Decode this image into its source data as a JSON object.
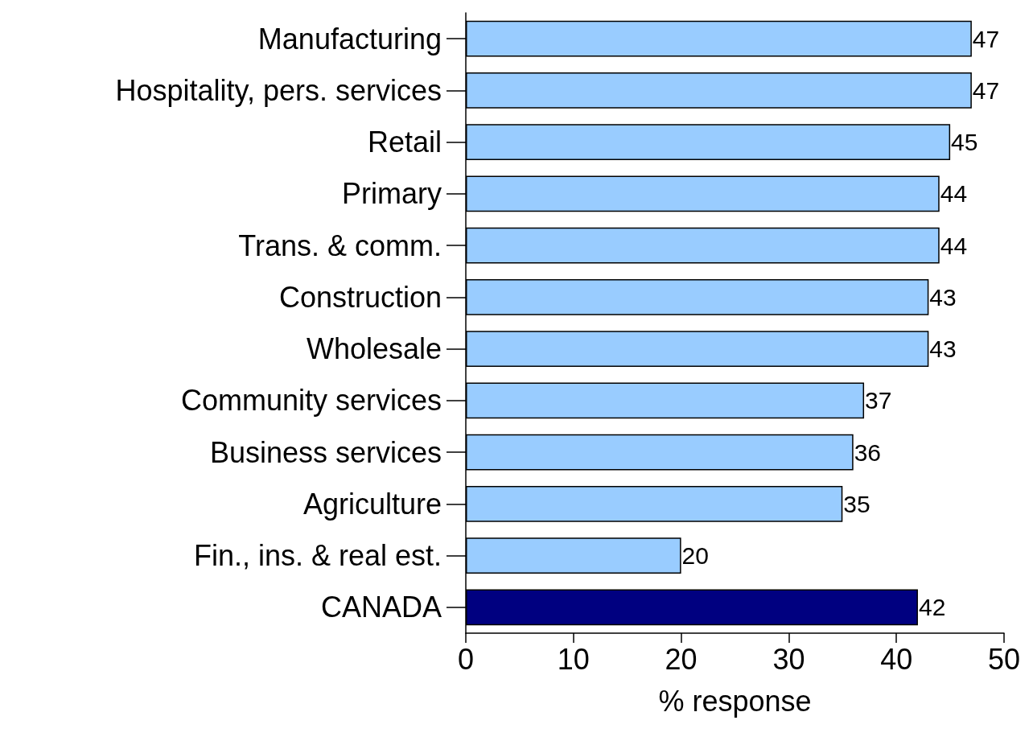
{
  "chart_data": {
    "type": "bar",
    "orientation": "horizontal",
    "xlabel": "% response",
    "categories": [
      "Manufacturing",
      "Hospitality, pers. services",
      "Retail",
      "Primary",
      "Trans. & comm.",
      "Construction",
      "Wholesale",
      "Community services",
      "Business services",
      "Agriculture",
      "Fin., ins. & real est.",
      "CANADA"
    ],
    "values": [
      47,
      47,
      45,
      44,
      44,
      43,
      43,
      37,
      36,
      35,
      20,
      42
    ],
    "colors": [
      "#99ccff",
      "#99ccff",
      "#99ccff",
      "#99ccff",
      "#99ccff",
      "#99ccff",
      "#99ccff",
      "#99ccff",
      "#99ccff",
      "#99ccff",
      "#99ccff",
      "#000080"
    ],
    "xlim": [
      0,
      50
    ],
    "xticks": [
      0,
      10,
      20,
      30,
      40,
      50
    ],
    "data_labels": true,
    "grid": false
  }
}
